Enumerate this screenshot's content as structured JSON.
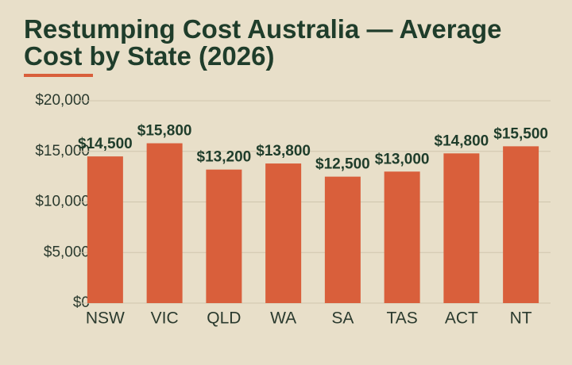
{
  "chart_data": {
    "type": "bar",
    "title": "Restumping Cost Australia — Average Cost by State (2026)",
    "categories": [
      "NSW",
      "VIC",
      "QLD",
      "WA",
      "SA",
      "TAS",
      "ACT",
      "NT"
    ],
    "values": [
      14500,
      15800,
      13200,
      13800,
      12500,
      13000,
      14800,
      15500
    ],
    "value_labels": [
      "$14,500",
      "$15,800",
      "$13,200",
      "$13,800",
      "$12,500",
      "$13,000",
      "$14,800",
      "$15,500"
    ],
    "color": "#d95f3b",
    "ylim": [
      0,
      20000
    ],
    "yticks": [
      {
        "value": 0,
        "label": "$0"
      },
      {
        "value": 5000,
        "label": "$5,000"
      },
      {
        "value": 10000,
        "label": "$10,000"
      },
      {
        "value": 15000,
        "label": "$15,000"
      },
      {
        "value": 20000,
        "label": "$20,000"
      }
    ],
    "grid": true
  }
}
